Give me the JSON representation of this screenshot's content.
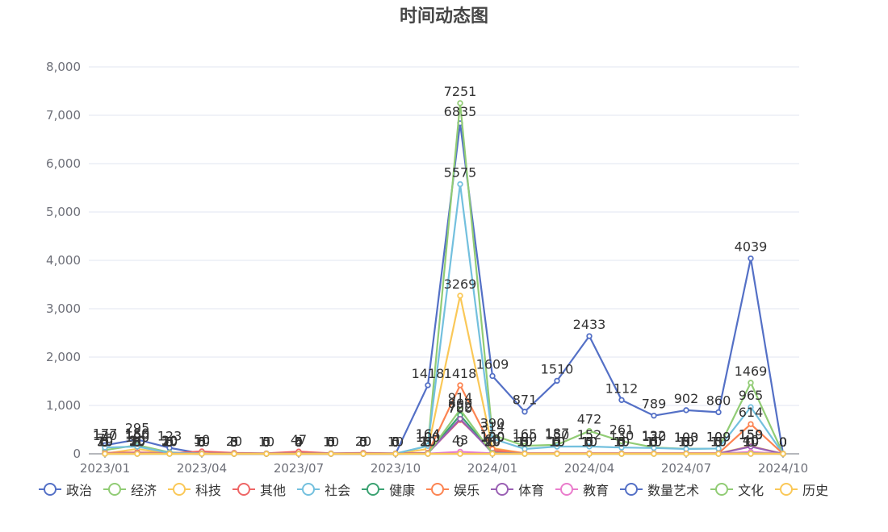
{
  "chart_data": {
    "type": "line",
    "title": "时间动态图",
    "xlabel": "",
    "ylabel": "",
    "x": [
      "2023-01",
      "2023-02",
      "2023-03",
      "2023-04",
      "2023-05",
      "2023-06",
      "2023-07",
      "2023-08",
      "2023-09",
      "2023-10",
      "2023-11",
      "2023-12",
      "2024-01",
      "2024-02",
      "2024-03",
      "2024-04",
      "2024-05",
      "2024-06",
      "2024-07",
      "2024-08",
      "2024-09",
      "2024-10"
    ],
    "x_tick_labels": [
      "2023/01",
      "2023/04",
      "2023/07",
      "2023/10",
      "2024/01",
      "2024/04",
      "2024/07",
      "2024/10"
    ],
    "y_tick_labels": [
      "0",
      "1,000",
      "2,000",
      "3,000",
      "4,000",
      "5,000",
      "6,000",
      "7,000",
      "8,000"
    ],
    "ylim": [
      0,
      8000
    ],
    "grid": true,
    "legend_position": "bottom",
    "series": [
      {
        "name": "政治",
        "color": "#5470c6",
        "values": [
          177,
          295,
          123,
          5,
          3,
          0,
          4,
          0,
          0,
          0,
          1418,
          6835,
          1609,
          871,
          1510,
          2433,
          1112,
          789,
          902,
          860,
          4039,
          0
        ]
      },
      {
        "name": "经济",
        "color": "#91cc75",
        "values": [
          76,
          180,
          30,
          5,
          0,
          0,
          0,
          0,
          0,
          0,
          164,
          7251,
          390,
          165,
          187,
          472,
          261,
          132,
          103,
          109,
          1469,
          0
        ]
      },
      {
        "name": "科技",
        "color": "#fac858",
        "values": [
          5,
          100,
          5,
          0,
          0,
          0,
          0,
          0,
          0,
          0,
          100,
          3269,
          120,
          10,
          10,
          10,
          10,
          10,
          10,
          10,
          159,
          0
        ]
      },
      {
        "name": "其他",
        "color": "#ee6666",
        "values": [
          20,
          30,
          10,
          50,
          20,
          10,
          47,
          10,
          20,
          10,
          20,
          700,
          60,
          10,
          10,
          10,
          10,
          10,
          10,
          10,
          10,
          0
        ]
      },
      {
        "name": "社会",
        "color": "#73c0de",
        "values": [
          130,
          150,
          20,
          10,
          5,
          5,
          5,
          5,
          5,
          5,
          164,
          5575,
          314,
          100,
          150,
          152,
          130,
          120,
          100,
          109,
          965,
          0
        ]
      },
      {
        "name": "健康",
        "color": "#3ba272",
        "values": [
          5,
          10,
          5,
          0,
          0,
          0,
          0,
          0,
          0,
          0,
          10,
          800,
          20,
          5,
          5,
          5,
          5,
          5,
          5,
          5,
          10,
          0
        ]
      },
      {
        "name": "娱乐",
        "color": "#fc8452",
        "values": [
          10,
          20,
          5,
          5,
          0,
          0,
          0,
          0,
          0,
          0,
          10,
          1418,
          100,
          10,
          10,
          10,
          10,
          10,
          10,
          10,
          614,
          0
        ]
      },
      {
        "name": "体育",
        "color": "#9a60b4",
        "values": [
          5,
          10,
          5,
          0,
          0,
          0,
          0,
          0,
          0,
          0,
          10,
          722,
          20,
          5,
          5,
          5,
          5,
          5,
          5,
          5,
          150,
          0
        ]
      },
      {
        "name": "教育",
        "color": "#ea7ccc",
        "values": [
          5,
          5,
          5,
          0,
          0,
          0,
          0,
          0,
          0,
          0,
          5,
          43,
          10,
          5,
          5,
          5,
          5,
          5,
          5,
          5,
          40,
          0
        ]
      },
      {
        "name": "数量艺术",
        "color": "#5470c6",
        "values": [
          0,
          0,
          0,
          0,
          0,
          0,
          0,
          0,
          0,
          0,
          0,
          0,
          0,
          0,
          0,
          0,
          0,
          0,
          0,
          0,
          0,
          0
        ]
      },
      {
        "name": "文化",
        "color": "#91cc75",
        "values": [
          0,
          0,
          0,
          0,
          0,
          0,
          0,
          0,
          0,
          0,
          0,
          914,
          10,
          0,
          0,
          0,
          0,
          0,
          0,
          0,
          10,
          0
        ]
      },
      {
        "name": "历史",
        "color": "#fac858",
        "values": [
          0,
          0,
          0,
          0,
          0,
          0,
          0,
          0,
          0,
          0,
          0,
          0,
          0,
          0,
          0,
          0,
          0,
          0,
          0,
          0,
          0,
          0
        ]
      }
    ]
  }
}
